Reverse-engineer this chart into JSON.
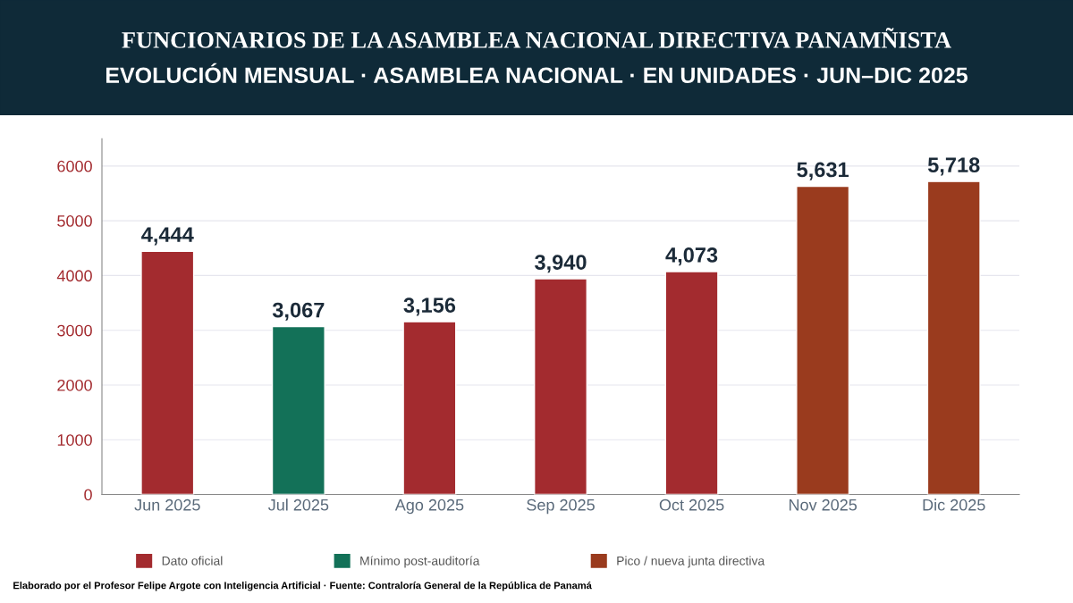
{
  "chart_data": {
    "type": "bar",
    "title": "FUNCIONARIOS DE LA ASAMBLEA NACIONAL DIRECTIVA PANAMÑISTA",
    "subtitle": "EVOLUCIÓN MENSUAL · ASAMBLEA NACIONAL · EN UNIDADES · JUN–DIC 2025",
    "categories": [
      "Jun 2025",
      "Jul 2025",
      "Ago 2025",
      "Sep 2025",
      "Oct 2025",
      "Nov 2025",
      "Dic 2025"
    ],
    "series": [
      {
        "name": "Dato oficial",
        "color": "#a32b2f",
        "values": [
          4444,
          null,
          3156,
          3940,
          4073,
          null,
          null
        ],
        "value_labels": [
          "4,444",
          null,
          "3,156",
          "3,940",
          "4,073",
          null,
          null
        ]
      },
      {
        "name": "Mínimo post-auditoría",
        "color": "#137158",
        "values": [
          null,
          3067,
          null,
          null,
          null,
          null,
          null
        ],
        "value_labels": [
          null,
          "3,067",
          null,
          null,
          null,
          null,
          null
        ]
      },
      {
        "name": "Pico / nueva junta directiva",
        "color": "#9a3b1e",
        "values": [
          null,
          null,
          null,
          null,
          null,
          5631,
          5718
        ],
        "value_labels": [
          null,
          null,
          null,
          null,
          null,
          "5,631",
          "5,718"
        ]
      }
    ],
    "ylim": [
      0,
      6500
    ],
    "yticks": [
      0,
      1000,
      2000,
      3000,
      4000,
      5000,
      6000
    ],
    "grid": "y",
    "legend": "bottom",
    "annotations": [
      "Elaborado por el Profesor Felipe Argote con Inteligencia Artificial · Fuente: Contraloría General de la República de Panamá"
    ]
  }
}
